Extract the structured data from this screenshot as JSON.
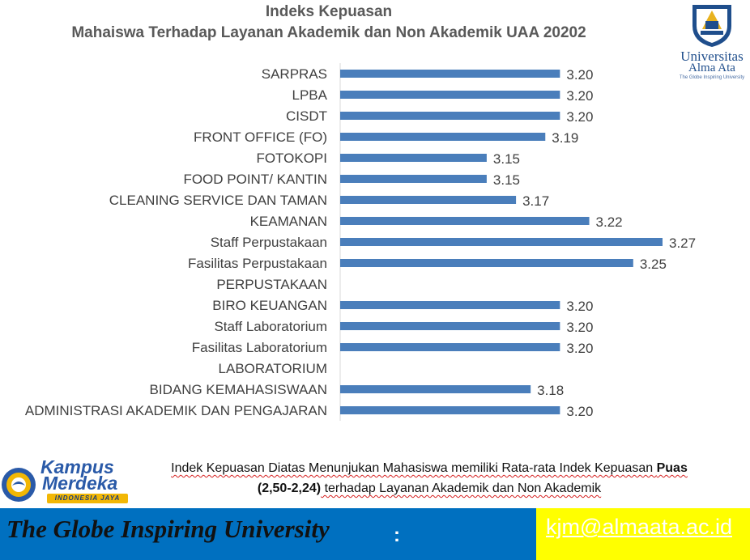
{
  "chart_data": {
    "type": "bar",
    "orientation": "horizontal",
    "title": "Indeks Kepuasan",
    "subtitle": "Mahaiswa Terhadap Layanan Akademik dan Non Akademik UAA 20202",
    "categories": [
      "SARPRAS",
      "LPBA",
      "CISDT",
      "FRONT OFFICE (FO)",
      "FOTOKOPI",
      "FOOD POINT/ KANTIN",
      "CLEANING SERVICE DAN TAMAN",
      "KEAMANAN",
      "Staff Perpustakaan",
      "Fasilitas Perpustakaan ",
      "PERPUSTAKAAN",
      "BIRO KEUANGAN",
      "Staff Laboratorium",
      "Fasilitas Laboratorium",
      "LABORATORIUM",
      "BIDANG KEMAHASISWAAN",
      "ADMINISTRASI AKADEMIK DAN PENGAJARAN"
    ],
    "values": [
      3.2,
      3.2,
      3.2,
      3.19,
      3.15,
      3.15,
      3.17,
      3.22,
      3.27,
      3.25,
      null,
      3.2,
      3.2,
      3.2,
      null,
      3.18,
      3.2
    ],
    "value_labels": [
      "3.20",
      "3.20",
      "3.20",
      "3.19",
      "3.15",
      "3.15",
      "3.17",
      "3.22",
      "3.27",
      "3.25",
      "",
      "3.20",
      "3.20",
      "3.20",
      "",
      "3.18",
      "3.20"
    ],
    "xlim": [
      3.05,
      3.27
    ],
    "bar_color": "#4a7ebb",
    "grid": false
  },
  "logo": {
    "line1": "Universitas",
    "line2": "Alma Ata",
    "tagline": "The Globe Inspiring University"
  },
  "kampus_merdeka": {
    "line1": "Kampus",
    "line2": "Merdeka",
    "line3": "INDONESIA JAYA"
  },
  "note": {
    "p1": "Indek Kepuasan Diatas Menunjukan Mahasiswa memiliki Rata-rata Indek  Kepuasan ",
    "p1_bold": "Puas",
    "p2_bold": "(2,50-2,24)",
    "p2": " terhadap Layanan Akademik dan Non Akademik"
  },
  "footer": {
    "tagline": "The Globe Inspiring University",
    "colon": ":",
    "email": "kjm@almaata.ac.id"
  },
  "colors": {
    "footer_bg": "#0070c0",
    "email_bg": "#ffff00",
    "text_gray": "#595959"
  }
}
